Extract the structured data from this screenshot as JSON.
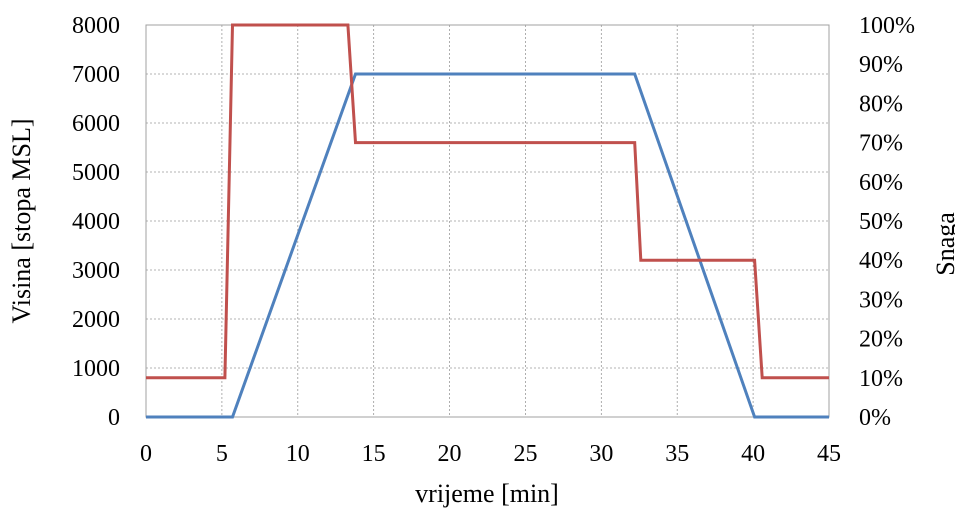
{
  "chart_data": {
    "type": "line",
    "xlabel": "vrijeme [min]",
    "ylabel": "Visina [stopa MSL]",
    "y2label": "Snaga",
    "xlim": [
      0,
      45
    ],
    "ylim": [
      0,
      8000
    ],
    "y2lim": [
      0,
      100
    ],
    "xticks": [
      0,
      5,
      10,
      15,
      20,
      25,
      30,
      35,
      40,
      45
    ],
    "yticks": [
      0,
      1000,
      2000,
      3000,
      4000,
      5000,
      6000,
      7000,
      8000
    ],
    "y2ticks": [
      "0%",
      "10%",
      "20%",
      "30%",
      "40%",
      "50%",
      "60%",
      "70%",
      "80%",
      "90%",
      "100%"
    ],
    "grid": true,
    "series": [
      {
        "axis": "left",
        "color": "#4f81bd",
        "x": [
          0,
          5.7,
          13.8,
          32.2,
          40.1,
          45
        ],
        "y": [
          0,
          0,
          7000,
          7000,
          0,
          0
        ]
      },
      {
        "axis": "right",
        "color": "#c0504d",
        "x": [
          0,
          5.2,
          5.7,
          13.3,
          13.8,
          32.2,
          32.6,
          40.1,
          40.6,
          45
        ],
        "y": [
          10,
          10,
          100,
          100,
          70,
          70,
          40,
          40,
          10,
          10
        ]
      }
    ]
  }
}
